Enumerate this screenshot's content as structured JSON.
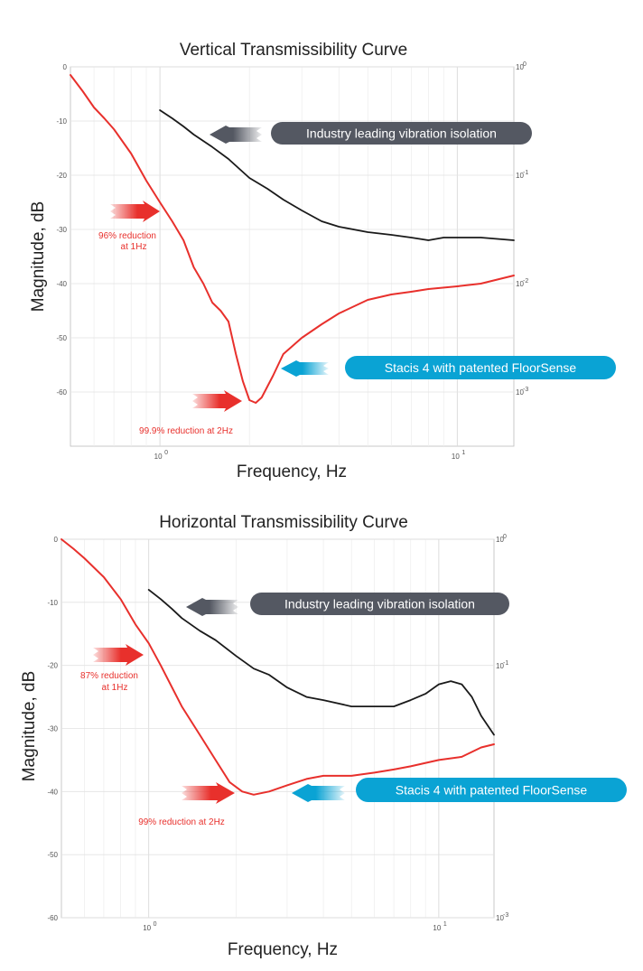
{
  "chart_data": [
    {
      "type": "line",
      "title": "Vertical Transmissibility Curve",
      "xlabel": "Frequency, Hz",
      "ylabel": "Magnitude, dB",
      "x_scale": "log",
      "xlim": [
        0.5,
        15.5
      ],
      "ylim": [
        -70,
        0
      ],
      "grid": true,
      "y_ticks": [
        "0",
        "-10",
        "-20",
        "-30",
        "-40",
        "-50",
        "-60"
      ],
      "x_ticks": [
        "10",
        "10"
      ],
      "x_tick_exponents": [
        "0",
        "1"
      ],
      "right_ticks": [
        "10",
        "10",
        "10",
        "10"
      ],
      "right_tick_exponents": [
        "0",
        "-1",
        "-2",
        "-3"
      ],
      "series": [
        {
          "color": "#1a1a1a",
          "x": [
            1.0,
            1.1,
            1.2,
            1.3,
            1.5,
            1.7,
            2.0,
            2.3,
            2.6,
            3.0,
            3.5,
            4.0,
            5.0,
            6.0,
            7.0,
            8.0,
            9.0,
            10.0,
            12.0,
            15.5
          ],
          "y": [
            -8,
            -9.5,
            -11,
            -12.5,
            -14.8,
            -17,
            -20.5,
            -22.5,
            -24.5,
            -26.5,
            -28.5,
            -29.5,
            -30.5,
            -31,
            -31.5,
            -32,
            -31.5,
            -31.5,
            -31.5,
            -32
          ]
        },
        {
          "color": "#e8302c",
          "x": [
            0.5,
            0.55,
            0.6,
            0.65,
            0.7,
            0.8,
            0.9,
            1.0,
            1.1,
            1.2,
            1.3,
            1.4,
            1.5,
            1.6,
            1.7,
            1.8,
            1.9,
            2.0,
            2.1,
            2.2,
            2.4,
            2.6,
            3.0,
            3.5,
            4.0,
            5.0,
            6.0,
            7.0,
            8.0,
            10.0,
            12.0,
            15.5
          ],
          "y": [
            -1.5,
            -4.5,
            -7.5,
            -9.5,
            -11.5,
            -16,
            -21,
            -25,
            -28.5,
            -32,
            -37,
            -40,
            -43.5,
            -45,
            -47,
            -53,
            -58,
            -61.5,
            -62,
            -61,
            -57,
            -53,
            -50,
            -47.5,
            -45.5,
            -43,
            -42,
            -41.5,
            -41,
            -40.5,
            -40,
            -38.5
          ]
        }
      ],
      "annotations": [
        {
          "text": "Industry leading vibration isolation",
          "kind": "callout",
          "color": "#545862"
        },
        {
          "text": "Stacis 4 with patented FloorSense",
          "kind": "callout",
          "color": "#0aa3d4"
        },
        {
          "text": "96% reduction",
          "text2": "at 1Hz",
          "kind": "note"
        },
        {
          "text": "99.9% reduction at 2Hz",
          "kind": "note"
        }
      ]
    },
    {
      "type": "line",
      "title": "Horizontal Transmissibility Curve",
      "xlabel": "Frequency, Hz",
      "ylabel": "Magnitude, dB",
      "x_scale": "log",
      "xlim": [
        0.5,
        15.5
      ],
      "ylim": [
        -60,
        0
      ],
      "grid": true,
      "y_ticks": [
        "0",
        "-10",
        "-20",
        "-30",
        "-40",
        "-50",
        "-60"
      ],
      "x_ticks": [
        "10",
        "10"
      ],
      "x_tick_exponents": [
        "0",
        "1"
      ],
      "right_ticks": [
        "10",
        "10",
        "10"
      ],
      "right_tick_exponents": [
        "0",
        "-1",
        "-3"
      ],
      "series": [
        {
          "color": "#1a1a1a",
          "x": [
            1.0,
            1.1,
            1.2,
            1.3,
            1.5,
            1.7,
            2.0,
            2.3,
            2.6,
            3.0,
            3.5,
            4.0,
            5.0,
            6.0,
            7.0,
            8.0,
            9.0,
            10.0,
            11.0,
            12.0,
            13.0,
            14.0,
            15.5
          ],
          "y": [
            -8,
            -9.5,
            -11,
            -12.5,
            -14.5,
            -16,
            -18.5,
            -20.5,
            -21.5,
            -23.5,
            -25,
            -25.5,
            -26.5,
            -26.5,
            -26.5,
            -25.5,
            -24.5,
            -23,
            -22.5,
            -23,
            -25,
            -28,
            -31
          ]
        },
        {
          "color": "#e8302c",
          "x": [
            0.5,
            0.55,
            0.6,
            0.7,
            0.8,
            0.9,
            1.0,
            1.1,
            1.3,
            1.5,
            1.7,
            1.9,
            2.1,
            2.3,
            2.6,
            3.0,
            3.5,
            4.0,
            5.0,
            6.0,
            7.0,
            8.0,
            10.0,
            12.0,
            14.0,
            15.5
          ],
          "y": [
            0,
            -1.5,
            -3,
            -6,
            -9.5,
            -13.5,
            -16.5,
            -20,
            -26.5,
            -31,
            -35,
            -38.5,
            -40,
            -40.5,
            -40,
            -39,
            -38,
            -37.5,
            -37.5,
            -37,
            -36.5,
            -36,
            -35,
            -34.5,
            -33,
            -32.5
          ]
        }
      ],
      "annotations": [
        {
          "text": "Industry leading vibration isolation",
          "kind": "callout",
          "color": "#545862"
        },
        {
          "text": "Stacis 4 with patented FloorSense",
          "kind": "callout",
          "color": "#0aa3d4"
        },
        {
          "text": "87% reduction",
          "text2": "at 1Hz",
          "kind": "note"
        },
        {
          "text": "99% reduction at 2Hz",
          "kind": "note"
        }
      ]
    }
  ]
}
